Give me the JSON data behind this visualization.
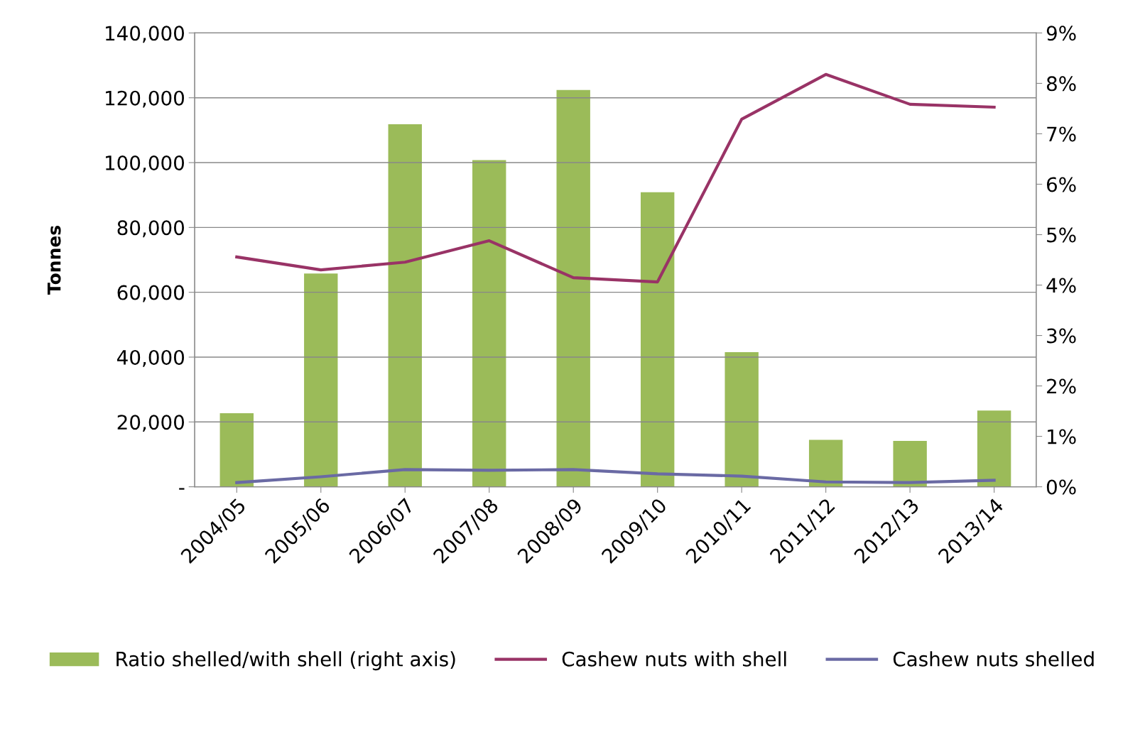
{
  "chart_data": {
    "type": "bar",
    "ylabel": "Tonnes",
    "categories": [
      "2004/05",
      "2005/06",
      "2006/07",
      "2007/08",
      "2008/09",
      "2009/10",
      "2010/11",
      "2011/12",
      "2012/13",
      "2013/14"
    ],
    "series": [
      {
        "name": "Ratio shelled/with shell (right axis)",
        "axis": "y2",
        "color": "#9bbb59",
        "values": [
          1.46,
          4.23,
          7.19,
          6.48,
          7.87,
          5.84,
          2.67,
          0.93,
          0.91,
          1.51
        ]
      },
      {
        "name": "Cashew nuts with shell",
        "type": "line",
        "color": "#993366",
        "values": [
          70900,
          66900,
          69300,
          75900,
          64500,
          63200,
          113400,
          127200,
          118000,
          117100
        ]
      },
      {
        "name": "Cashew nuts shelled",
        "type": "line",
        "color": "#6a6aa4",
        "values": [
          1300,
          3100,
          5300,
          5100,
          5300,
          4000,
          3300,
          1500,
          1300,
          2000
        ]
      }
    ],
    "ylim": [
      0,
      140000
    ],
    "yticks": [
      {
        "value": 0,
        "label": "-"
      },
      {
        "value": 20000,
        "label": "20,000"
      },
      {
        "value": 40000,
        "label": "40,000"
      },
      {
        "value": 60000,
        "label": "60,000"
      },
      {
        "value": 80000,
        "label": "80,000"
      },
      {
        "value": 100000,
        "label": "100,000"
      },
      {
        "value": 120000,
        "label": "120,000"
      },
      {
        "value": 140000,
        "label": "140,000"
      }
    ],
    "y2lim": [
      0,
      9
    ],
    "y2ticks": [
      {
        "value": 0,
        "label": "0%"
      },
      {
        "value": 1,
        "label": "1%"
      },
      {
        "value": 2,
        "label": "2%"
      },
      {
        "value": 3,
        "label": "3%"
      },
      {
        "value": 4,
        "label": "4%"
      },
      {
        "value": 5,
        "label": "5%"
      },
      {
        "value": 6,
        "label": "6%"
      },
      {
        "value": 7,
        "label": "7%"
      },
      {
        "value": 8,
        "label": "8%"
      },
      {
        "value": 9,
        "label": "9%"
      }
    ],
    "grid": "y",
    "legend": "bottom",
    "marker": "none",
    "line_style": "solid"
  }
}
